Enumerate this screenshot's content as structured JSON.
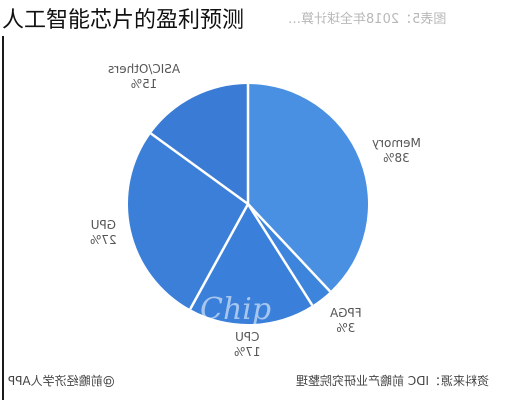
{
  "overlay_title": "人工智能芯片的盈利预测",
  "figure_caption": "图表5：2018年全球计算…",
  "source_text": "资料来源：IDC 前瞻产业研究院整理",
  "brand_text": "@前瞻经济学人APP",
  "watermark_text": "Chip",
  "colors": {
    "memory": "#4a90e2",
    "fpga": "#3d84dd",
    "cpu": "#3a80da",
    "gpu": "#3b7fd9",
    "asic": "#3a7bd5",
    "separator": "#ffffff"
  },
  "chart_data": {
    "type": "pie",
    "mirrored_display": true,
    "slices": [
      {
        "label": "Memory",
        "percent_label": "38%",
        "value": 38
      },
      {
        "label": "FPGA",
        "percent_label": "3%",
        "value": 3
      },
      {
        "label": "CPU",
        "percent_label": "17%",
        "value": 17
      },
      {
        "label": "GPU",
        "percent_label": "27%",
        "value": 27
      },
      {
        "label": "ASIC/Others",
        "percent_label": "15%",
        "value": 15
      }
    ]
  }
}
